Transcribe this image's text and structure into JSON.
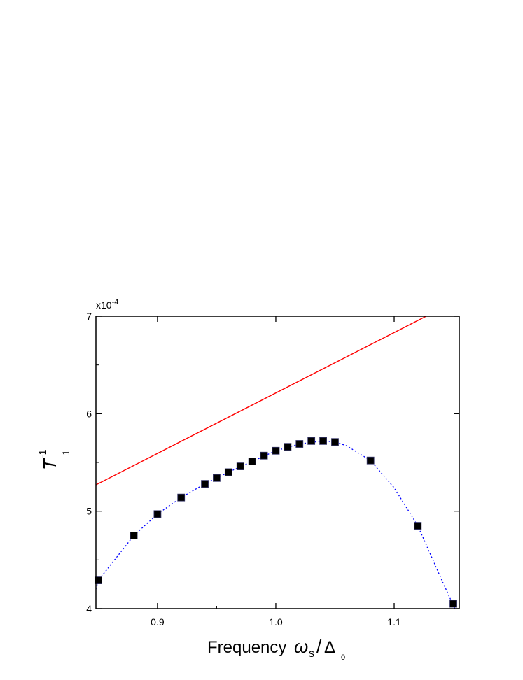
{
  "chart_data": {
    "type": "scatter",
    "title": "",
    "xlabel": "Frequency",
    "xlabel_math": {
      "symbol": "ω",
      "sub": "s",
      "slash": "/",
      "delta": "Δ",
      "delta_sub": "0"
    },
    "ylabel": {
      "symbol": "T",
      "superscript": "-1",
      "subscript": "1"
    },
    "y_multiplier": "x10",
    "y_multiplier_exp": "-4",
    "xlim": [
      0.848,
      1.155
    ],
    "ylim": [
      4,
      7
    ],
    "x_ticks": [
      {
        "value": 0.9,
        "label": "0.9"
      },
      {
        "value": 1.0,
        "label": "1.0"
      },
      {
        "value": 1.1,
        "label": "1.1"
      }
    ],
    "y_ticks": [
      {
        "value": 4,
        "label": "4"
      },
      {
        "value": 5,
        "label": "5"
      },
      {
        "value": 6,
        "label": "6"
      },
      {
        "value": 7,
        "label": "7"
      }
    ],
    "grid": false,
    "legend": "none",
    "series": [
      {
        "kind": "line",
        "color": "#ff0000",
        "style": "solid",
        "points": [
          [
            0.848,
            5.27
          ],
          [
            1.127,
            7.0
          ]
        ]
      },
      {
        "kind": "markers",
        "color": "#000000",
        "marker": "square",
        "points": [
          [
            0.85,
            4.29
          ],
          [
            0.88,
            4.75
          ],
          [
            0.9,
            4.97
          ],
          [
            0.92,
            5.14
          ],
          [
            0.94,
            5.28
          ],
          [
            0.95,
            5.34
          ],
          [
            0.96,
            5.4
          ],
          [
            0.97,
            5.46
          ],
          [
            0.98,
            5.51
          ],
          [
            0.99,
            5.57
          ],
          [
            1.0,
            5.62
          ],
          [
            1.01,
            5.66
          ],
          [
            1.02,
            5.69
          ],
          [
            1.03,
            5.72
          ],
          [
            1.04,
            5.72
          ],
          [
            1.05,
            5.71
          ],
          [
            1.08,
            5.52
          ],
          [
            1.12,
            4.85
          ],
          [
            1.15,
            4.05
          ]
        ]
      },
      {
        "kind": "line",
        "color": "#0000ff",
        "style": "dotted",
        "points": [
          [
            0.848,
            4.2
          ],
          [
            0.85,
            4.29
          ],
          [
            0.88,
            4.75
          ],
          [
            0.9,
            4.97
          ],
          [
            0.92,
            5.14
          ],
          [
            0.94,
            5.28
          ],
          [
            0.96,
            5.4
          ],
          [
            0.98,
            5.51
          ],
          [
            1.0,
            5.62
          ],
          [
            1.02,
            5.69
          ],
          [
            1.04,
            5.72
          ],
          [
            1.05,
            5.71
          ],
          [
            1.06,
            5.67
          ],
          [
            1.08,
            5.52
          ],
          [
            1.1,
            5.24
          ],
          [
            1.12,
            4.85
          ],
          [
            1.14,
            4.3
          ],
          [
            1.152,
            3.98
          ]
        ]
      }
    ]
  }
}
